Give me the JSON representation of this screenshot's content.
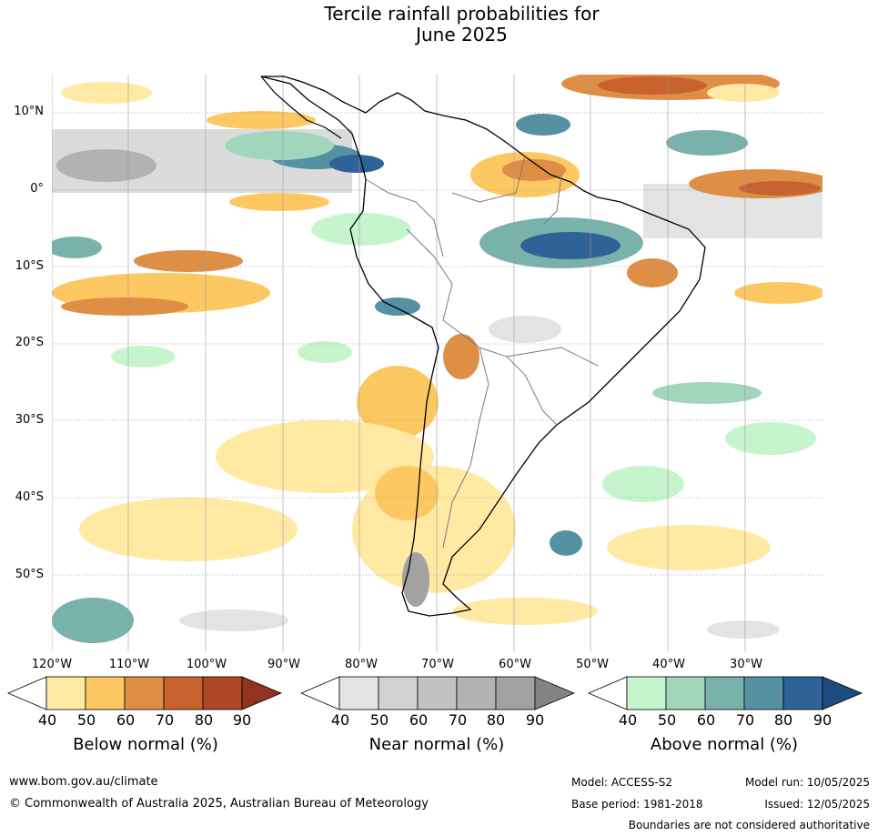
{
  "title_line1": "Tercile rainfall probabilities for",
  "title_line2": "June 2025",
  "lat_labels": [
    "10°N",
    "0°",
    "10°S",
    "20°S",
    "30°S",
    "40°S",
    "50°S"
  ],
  "lon_labels": [
    "120°W",
    "110°W",
    "100°W",
    "90°W",
    "80°W",
    "70°W",
    "60°W",
    "50°W",
    "40°W",
    "30°W"
  ],
  "colorbars": {
    "below": {
      "title": "Below normal (%)",
      "ticks": [
        "40",
        "50",
        "60",
        "70",
        "80",
        "90"
      ],
      "colors": [
        "#ffffff",
        "#ffe9a3",
        "#fdc862",
        "#de8f45",
        "#c8622f",
        "#ad4726",
        "#923320"
      ]
    },
    "near": {
      "title": "Near normal (%)",
      "ticks": [
        "40",
        "50",
        "60",
        "70",
        "80",
        "90"
      ],
      "colors": [
        "#ffffff",
        "#e3e3e3",
        "#d2d2d2",
        "#c2c2c2",
        "#b2b2b2",
        "#a2a2a2",
        "#838383"
      ]
    },
    "above": {
      "title": "Above normal (%)",
      "ticks": [
        "40",
        "50",
        "60",
        "70",
        "80",
        "90"
      ],
      "colors": [
        "#ffffff",
        "#c6f5cd",
        "#a1d6bc",
        "#79b1ab",
        "#5591a3",
        "#2f6296",
        "#1b4b80"
      ]
    }
  },
  "footer": {
    "url": "www.bom.gov.au/climate",
    "copyright": "© Commonwealth of Australia 2025, Australian Bureau of Meteorology",
    "model": "Model: ACCESS-S2",
    "model_run": "Model run: 10/05/2025",
    "base_period": "Base period: 1981-2018",
    "issued": "Issued: 12/05/2025",
    "disclaimer": "Boundaries are not considered authoritative"
  }
}
